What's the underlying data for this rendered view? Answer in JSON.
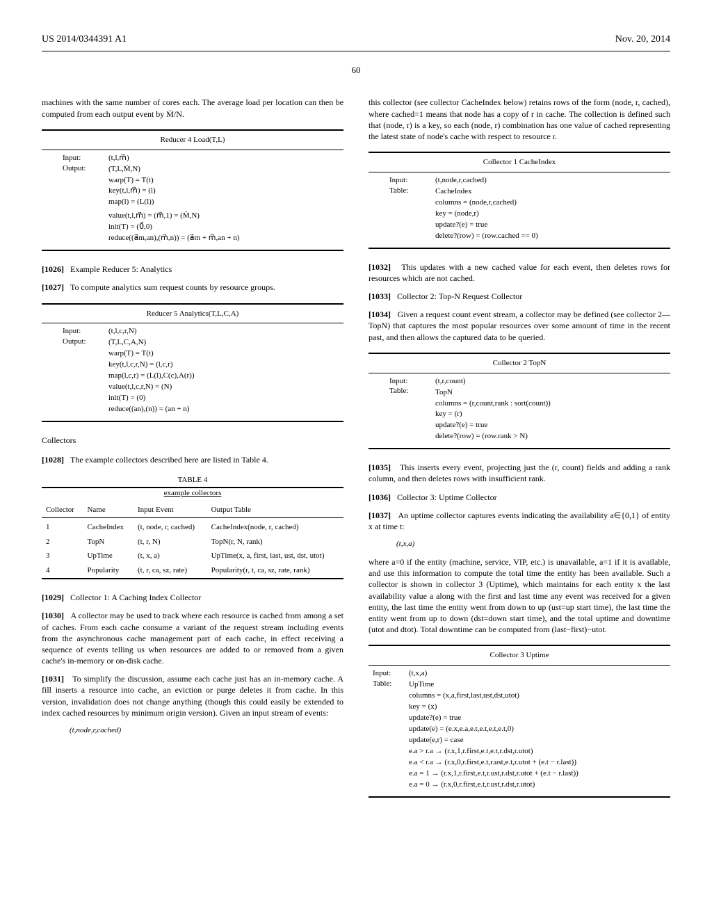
{
  "header": {
    "pubnum": "US 2014/0344391 A1",
    "date": "Nov. 20, 2014",
    "page": "60"
  },
  "col_left": {
    "p_intro": "machines with the same number of cores each. The average load per location can then be computed from each output event by M̄/N.",
    "reducer4": {
      "title": "Reducer 4 Load(T,L)",
      "input_lbl": "Input:",
      "output_lbl": "Output:",
      "lines": [
        "(t,l,m⃗)",
        "(T,L,M̄,N)",
        "warp(T) = T(t)",
        "key(t,l,m⃗) = (l)",
        "map(l) = (L(l))",
        "value(t,l,m⃗) = (m⃗,1) = (M̄,N)",
        "init(T) = (0⃗,0)",
        "reduce((a⃗m,an),(m⃗,n)) = (a⃗m + m⃗,an + n)"
      ]
    },
    "p1026": "Example Reducer 5: Analytics",
    "p1027": "To compute analytics sum request counts by resource groups.",
    "reducer5": {
      "title": "Reducer 5 Analytics(T,L,C,A)",
      "input_lbl": "Input:",
      "output_lbl": "Output:",
      "lines": [
        "(t,l,c,r,N)",
        "(T,L,C,A,N)",
        "warp(T) = T(t)",
        "key(t,l,c,r,N) = (l,c,r)",
        "map(l,c,r) = (L(l),C(c),A(r))",
        "value(t,l,c,r,N) = (N)",
        "init(T) = (0)",
        "reduce((an),(n)) = (an + n)"
      ]
    },
    "sec_collectors": "Collectors",
    "p1028": "The example collectors described here are listed in Table 4.",
    "table4": {
      "caption": "TABLE 4",
      "subtitle": "example collectors",
      "cols": [
        "Collector",
        "Name",
        "Input Event",
        "Output Table"
      ],
      "rows": [
        [
          "1",
          "CacheIndex",
          "(t, node, r, cached)",
          "CacheIndex(node, r, cached)"
        ],
        [
          "2",
          "TopN",
          "(t, r, N)",
          "TopN(r, N, rank)"
        ],
        [
          "3",
          "UpTime",
          "(t, x, a)",
          "UpTime(x, a, first, last, ust, dst, utot)"
        ],
        [
          "4",
          "Popularity",
          "(t, r, ca, sz, rate)",
          "Popularity(r, t, ca, sz, rate, rank)"
        ]
      ]
    },
    "p1029": "Collector 1: A Caching Index Collector",
    "p1030": "A collector may be used to track where each resource is cached from among a set of caches. From each cache consume a variant of the request stream including events from the asynchronous cache management part of each cache, in effect receiving a sequence of events telling us when resources are added to or removed from a given cache's in-memory or on-disk cache.",
    "p1031": "To simplify the discussion, assume each cache just has an in-memory cache. A fill inserts a resource into cache, an eviction or purge deletes it from cache. In this version, invalidation does not change anything (though this could easily be extended to index cached resources by minimum origin version). Given an input stream of events:",
    "event1": "(t,node,r,cached)"
  },
  "col_right": {
    "p_intro": "this collector (see collector CacheIndex below) retains rows of the form (node, r, cached), where cached=1 means that node has a copy of r in cache. The collection is defined such that (node, r) is a key, so each (node, r) combination has one value of cached representing the latest state of node's cache with respect to resource r.",
    "coll1": {
      "title": "Collector 1 CacheIndex",
      "input_lbl": "Input:",
      "table_lbl": "Table:",
      "lines": [
        "(t,node,r,cached)",
        "CacheIndex",
        "columns = (node,r,cached)",
        "key = (node,r)",
        "update?(e) = true",
        "delete?(row) = (row.cached == 0)"
      ]
    },
    "p1032": "This updates with a new cached value for each event, then deletes rows for resources which are not cached.",
    "p1033": "Collector 2: Top-N Request Collector",
    "p1034": "Given a request count event stream, a collector may be defined (see collector 2—TopN) that captures the most popular resources over some amount of time in the recent past, and then allows the captured data to be queried.",
    "coll2": {
      "title": "Collector 2 TopN",
      "input_lbl": "Input:",
      "table_lbl": "Table:",
      "lines": [
        "(t,r,count)",
        "TopN",
        "columns = (r,count,rank : sort(count))",
        "key = (r)",
        "update?(e) = true",
        "delete?(row) = (row.rank > N)"
      ]
    },
    "p1035": "This inserts every event, projecting just the (r, count) fields and adding a rank column, and then deletes rows with insufficient rank.",
    "p1036": "Collector 3: Uptime Collector",
    "p1037": "An uptime collector captures events indicating the availability a∈{0,1} of entity x at time t:",
    "event2": "(t,x,a)",
    "p_where": "where a=0 if the entity (machine, service, VIP, etc.) is unavailable, a=1 if it is available, and use this information to compute the total time the entity has been available. Such a collector is shown in collector 3 (Uptime), which maintains for each entity x the last availability value a along with the first and last time any event was received for a given entity, the last time the entity went from down to up (ust=up start time), the last time the entity went from up to down (dst=down start time), and the total uptime and downtime (utot and dtot). Total downtime can be computed from (last−first)−utot.",
    "coll3": {
      "title": "Collector 3 Uptime",
      "input_lbl": "Input:",
      "table_lbl": "Table:",
      "lines": [
        "(t,x,a)",
        "UpTime",
        "columns = (x,a,first,last,ust,dst,utot)",
        "key = (x)",
        "update?(e) = true",
        "update(e) = (e.x,e.a,e.t,e.t,e.t,e.t,0)",
        "update(e,r) = case",
        "e.a > r.a → (r.x,1,r.first,e.t,e.t,r.dst,r.utot)",
        "e.a < r.a → (r.x,0,r.first,e.t,r.ust,e.t,r.utot + (e.t − r.last))",
        "e.a = 1 → (r.x,1,r.first,e.t,r.ust,r.dst,r.utot + (e.t − r.last))",
        "e.a = 0 → (r.x,0,r.first,e.t,r.ust,r.dst,r.utot)"
      ]
    }
  }
}
